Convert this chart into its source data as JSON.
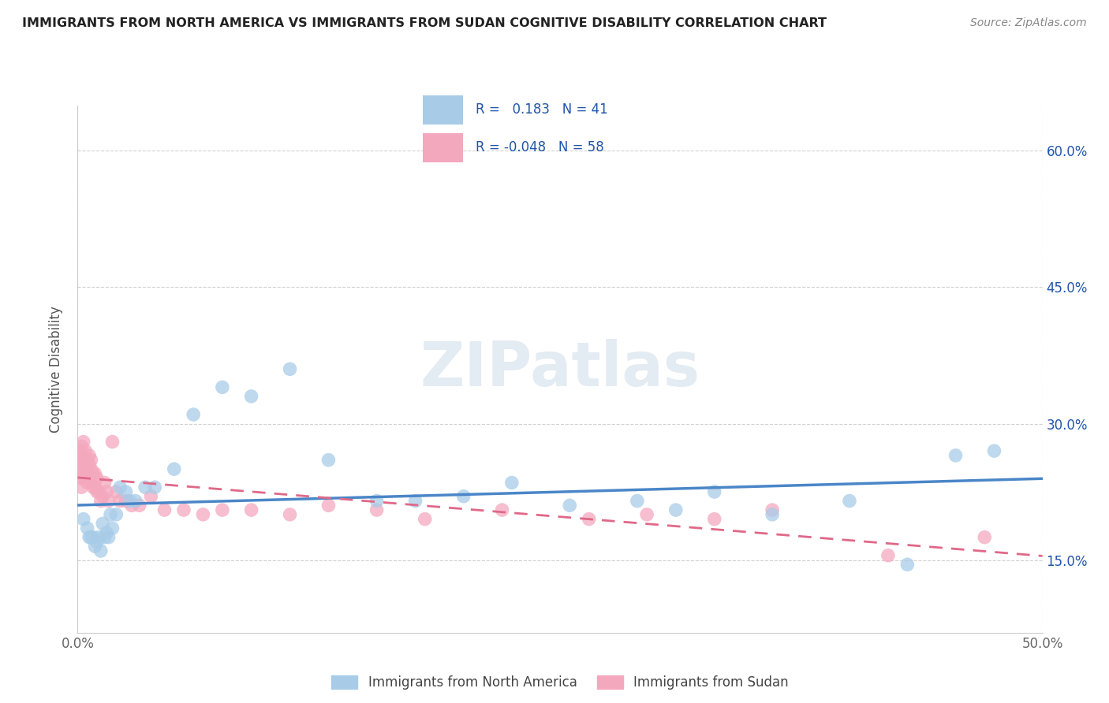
{
  "title": "IMMIGRANTS FROM NORTH AMERICA VS IMMIGRANTS FROM SUDAN COGNITIVE DISABILITY CORRELATION CHART",
  "source": "Source: ZipAtlas.com",
  "ylabel": "Cognitive Disability",
  "legend_label1": "Immigrants from North America",
  "legend_label2": "Immigrants from Sudan",
  "R1": 0.183,
  "N1": 41,
  "R2": -0.048,
  "N2": 58,
  "color1": "#a8cce8",
  "color2": "#f4a8be",
  "line_color1": "#4a86c8",
  "line_color2": "#e06888",
  "text_color": "#2255aa",
  "xlim": [
    0.0,
    0.5
  ],
  "ylim": [
    0.07,
    0.65
  ],
  "yticks": [
    0.15,
    0.3,
    0.45,
    0.6
  ],
  "ytick_labels": [
    "15.0%",
    "30.0%",
    "45.0%",
    "60.0%"
  ],
  "watermark": "ZIPatlas",
  "north_america_x": [
    0.003,
    0.005,
    0.006,
    0.007,
    0.008,
    0.009,
    0.01,
    0.011,
    0.012,
    0.013,
    0.014,
    0.015,
    0.016,
    0.017,
    0.018,
    0.02,
    0.022,
    0.025,
    0.027,
    0.03,
    0.035,
    0.04,
    0.05,
    0.06,
    0.075,
    0.09,
    0.11,
    0.13,
    0.155,
    0.175,
    0.2,
    0.225,
    0.255,
    0.29,
    0.31,
    0.33,
    0.36,
    0.4,
    0.43,
    0.455,
    0.475
  ],
  "north_america_y": [
    0.195,
    0.185,
    0.175,
    0.175,
    0.175,
    0.165,
    0.17,
    0.175,
    0.16,
    0.19,
    0.175,
    0.18,
    0.175,
    0.2,
    0.185,
    0.2,
    0.23,
    0.225,
    0.215,
    0.215,
    0.23,
    0.23,
    0.25,
    0.31,
    0.34,
    0.33,
    0.36,
    0.26,
    0.215,
    0.215,
    0.22,
    0.235,
    0.21,
    0.215,
    0.205,
    0.225,
    0.2,
    0.215,
    0.145,
    0.265,
    0.27
  ],
  "sudan_x": [
    0.001,
    0.001,
    0.001,
    0.002,
    0.002,
    0.002,
    0.002,
    0.003,
    0.003,
    0.003,
    0.003,
    0.004,
    0.004,
    0.004,
    0.005,
    0.005,
    0.005,
    0.006,
    0.006,
    0.006,
    0.007,
    0.007,
    0.007,
    0.008,
    0.008,
    0.009,
    0.009,
    0.01,
    0.01,
    0.011,
    0.012,
    0.013,
    0.014,
    0.015,
    0.016,
    0.018,
    0.02,
    0.022,
    0.025,
    0.028,
    0.032,
    0.038,
    0.045,
    0.055,
    0.065,
    0.075,
    0.09,
    0.11,
    0.13,
    0.155,
    0.18,
    0.22,
    0.265,
    0.295,
    0.33,
    0.36,
    0.42,
    0.47
  ],
  "sudan_y": [
    0.24,
    0.255,
    0.27,
    0.23,
    0.245,
    0.26,
    0.275,
    0.24,
    0.255,
    0.265,
    0.28,
    0.245,
    0.26,
    0.27,
    0.235,
    0.25,
    0.26,
    0.24,
    0.255,
    0.265,
    0.235,
    0.25,
    0.26,
    0.23,
    0.245,
    0.23,
    0.245,
    0.225,
    0.24,
    0.225,
    0.215,
    0.22,
    0.235,
    0.225,
    0.215,
    0.28,
    0.225,
    0.215,
    0.215,
    0.21,
    0.21,
    0.22,
    0.205,
    0.205,
    0.2,
    0.205,
    0.205,
    0.2,
    0.21,
    0.205,
    0.195,
    0.205,
    0.195,
    0.2,
    0.195,
    0.205,
    0.155,
    0.175
  ]
}
